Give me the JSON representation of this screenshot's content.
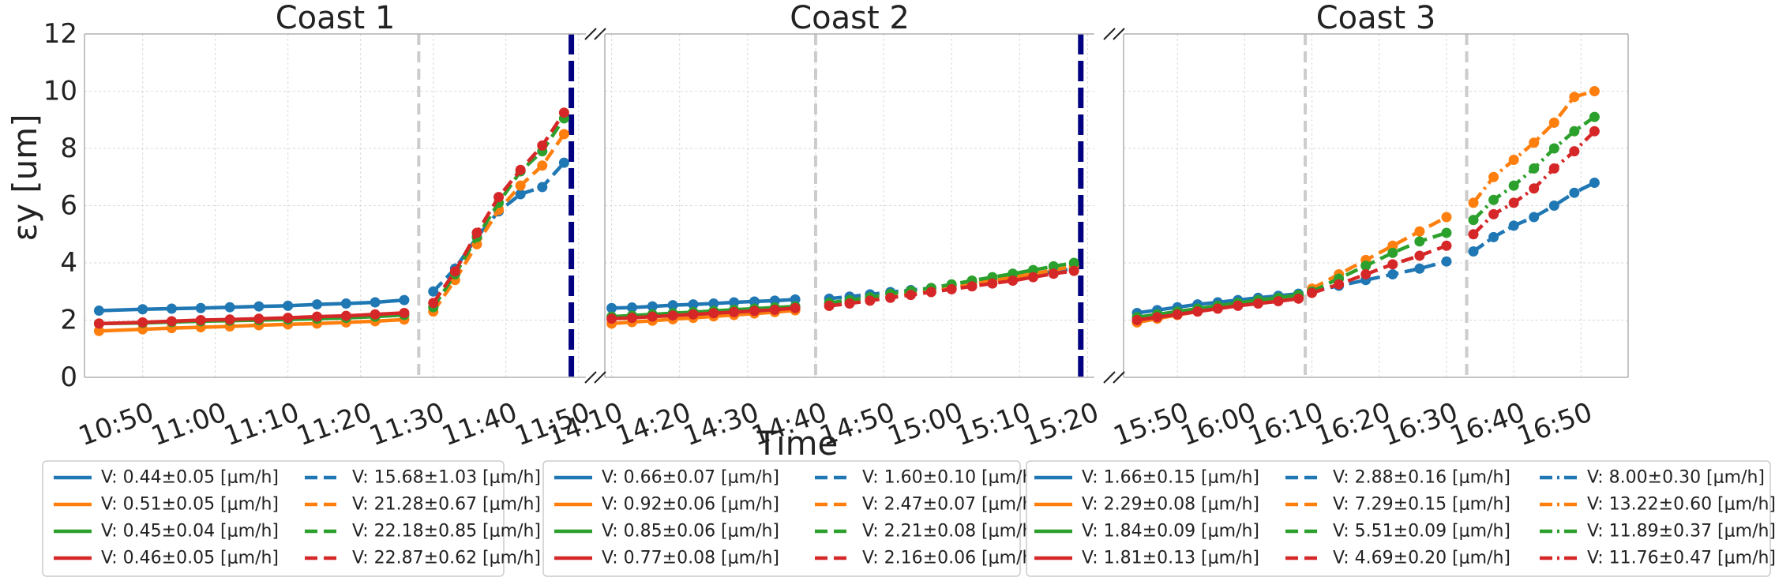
{
  "chart_data": {
    "type": "line",
    "ylabel": "εy [um]",
    "xlabel": "Time",
    "ylim": [
      0,
      12
    ],
    "yticks": [
      "0",
      "2",
      "4",
      "6",
      "8",
      "10",
      "12"
    ],
    "grid": true,
    "legend_position": "bottom",
    "colors": {
      "blue": "#1f77b4",
      "orange": "#ff7f0e",
      "green": "#2ca02c",
      "red": "#d62728",
      "marker_line": "#000080",
      "divider": "#cccccc"
    },
    "panels": [
      {
        "title": "Coast 1",
        "xlim": [
          "10:42",
          "11:51"
        ],
        "xticks": [
          "10:50",
          "11:00",
          "11:10",
          "11:20",
          "11:30",
          "11:40",
          "11:50"
        ],
        "dividers": [
          "11:28"
        ],
        "end_marker": "11:49",
        "series": [
          {
            "name": "V: 0.44±0.05 [μm/h]",
            "color": "blue",
            "style": "solid",
            "x": [
              "10:44",
              "10:50",
              "10:54",
              "10:58",
              "11:02",
              "11:06",
              "11:10",
              "11:14",
              "11:18",
              "11:22",
              "11:26"
            ],
            "y": [
              2.33,
              2.38,
              2.4,
              2.42,
              2.45,
              2.48,
              2.5,
              2.55,
              2.58,
              2.62,
              2.7
            ]
          },
          {
            "name": "V: 0.51±0.05 [μm/h]",
            "color": "orange",
            "style": "solid",
            "x": [
              "10:44",
              "10:50",
              "10:54",
              "10:58",
              "11:02",
              "11:06",
              "11:10",
              "11:14",
              "11:18",
              "11:22",
              "11:26"
            ],
            "y": [
              1.62,
              1.68,
              1.72,
              1.75,
              1.78,
              1.82,
              1.85,
              1.88,
              1.92,
              1.96,
              2.02
            ]
          },
          {
            "name": "V: 0.45±0.04 [μm/h]",
            "color": "green",
            "style": "solid",
            "x": [
              "10:44",
              "10:50",
              "10:54",
              "10:58",
              "11:02",
              "11:06",
              "11:10",
              "11:14",
              "11:18",
              "11:22",
              "11:26"
            ],
            "y": [
              1.88,
              1.9,
              1.93,
              1.96,
              1.98,
              2.0,
              2.02,
              2.05,
              2.08,
              2.12,
              2.18
            ]
          },
          {
            "name": "V: 0.46±0.05 [μm/h]",
            "color": "red",
            "style": "solid",
            "x": [
              "10:44",
              "10:50",
              "10:54",
              "10:58",
              "11:02",
              "11:06",
              "11:10",
              "11:14",
              "11:18",
              "11:22",
              "11:26"
            ],
            "y": [
              1.88,
              1.92,
              1.96,
              2.0,
              2.02,
              2.05,
              2.08,
              2.12,
              2.15,
              2.2,
              2.25
            ]
          },
          {
            "name": "V: 15.68±1.03 [μm/h]",
            "color": "blue",
            "style": "dashed",
            "x": [
              "11:30",
              "11:33",
              "11:36",
              "11:39",
              "11:42",
              "11:45",
              "11:48"
            ],
            "y": [
              3.0,
              3.8,
              4.9,
              5.8,
              6.4,
              6.65,
              7.5
            ]
          },
          {
            "name": "V: 21.28±0.67 [μm/h]",
            "color": "orange",
            "style": "dashed",
            "x": [
              "11:30",
              "11:33",
              "11:36",
              "11:39",
              "11:42",
              "11:45",
              "11:48"
            ],
            "y": [
              2.3,
              3.4,
              4.65,
              5.85,
              6.7,
              7.4,
              8.5
            ]
          },
          {
            "name": "V: 22.18±0.85 [μm/h]",
            "color": "green",
            "style": "dashed",
            "x": [
              "11:30",
              "11:33",
              "11:36",
              "11:39",
              "11:42",
              "11:45",
              "11:48"
            ],
            "y": [
              2.45,
              3.6,
              4.9,
              6.1,
              7.2,
              7.9,
              9.05
            ]
          },
          {
            "name": "V: 22.87±0.62 [μm/h]",
            "color": "red",
            "style": "dashed",
            "x": [
              "11:30",
              "11:33",
              "11:36",
              "11:39",
              "11:42",
              "11:45",
              "11:48"
            ],
            "y": [
              2.6,
              3.7,
              5.05,
              6.3,
              7.25,
              8.1,
              9.25
            ]
          }
        ]
      },
      {
        "title": "Coast 2",
        "xlim": [
          "14:09",
          "15:21"
        ],
        "xticks": [
          "14:10",
          "14:20",
          "14:30",
          "14:40",
          "14:50",
          "15:00",
          "15:10",
          "15:20"
        ],
        "dividers": [
          "14:40"
        ],
        "end_marker": "15:19",
        "series": [
          {
            "name": "V: 0.66±0.07 [μm/h]",
            "color": "blue",
            "style": "solid",
            "x": [
              "14:10",
              "14:13",
              "14:16",
              "14:19",
              "14:22",
              "14:25",
              "14:28",
              "14:31",
              "14:34",
              "14:37"
            ],
            "y": [
              2.42,
              2.44,
              2.48,
              2.52,
              2.55,
              2.58,
              2.62,
              2.65,
              2.68,
              2.72
            ]
          },
          {
            "name": "V: 0.92±0.06 [μm/h]",
            "color": "orange",
            "style": "solid",
            "x": [
              "14:10",
              "14:13",
              "14:16",
              "14:19",
              "14:22",
              "14:25",
              "14:28",
              "14:31",
              "14:34",
              "14:37"
            ],
            "y": [
              1.88,
              1.93,
              1.98,
              2.03,
              2.08,
              2.13,
              2.18,
              2.23,
              2.28,
              2.34
            ]
          },
          {
            "name": "V: 0.85±0.06 [μm/h]",
            "color": "green",
            "style": "solid",
            "x": [
              "14:10",
              "14:13",
              "14:16",
              "14:19",
              "14:22",
              "14:25",
              "14:28",
              "14:31",
              "14:34",
              "14:37"
            ],
            "y": [
              2.12,
              2.16,
              2.2,
              2.24,
              2.28,
              2.32,
              2.36,
              2.4,
              2.44,
              2.48
            ]
          },
          {
            "name": "V: 0.77±0.08 [μm/h]",
            "color": "red",
            "style": "solid",
            "x": [
              "14:10",
              "14:13",
              "14:16",
              "14:19",
              "14:22",
              "14:25",
              "14:28",
              "14:31",
              "14:34",
              "14:37"
            ],
            "y": [
              2.05,
              2.08,
              2.12,
              2.16,
              2.2,
              2.24,
              2.28,
              2.32,
              2.36,
              2.42
            ]
          },
          {
            "name": "V: 1.60±0.10 [μm/h]",
            "color": "blue",
            "style": "dashed",
            "x": [
              "14:42",
              "14:45",
              "14:48",
              "14:51",
              "14:54",
              "14:57",
              "15:00",
              "15:03",
              "15:06",
              "15:09",
              "15:12",
              "15:15",
              "15:18"
            ],
            "y": [
              2.75,
              2.82,
              2.9,
              2.98,
              3.05,
              3.12,
              3.2,
              3.3,
              3.4,
              3.5,
              3.6,
              3.7,
              3.8
            ]
          },
          {
            "name": "V: 2.47±0.07 [μm/h]",
            "color": "orange",
            "style": "dashed",
            "x": [
              "14:42",
              "14:45",
              "14:48",
              "14:51",
              "14:54",
              "14:57",
              "15:00",
              "15:03",
              "15:06",
              "15:09",
              "15:12",
              "15:15",
              "15:18"
            ],
            "y": [
              2.5,
              2.6,
              2.7,
              2.8,
              2.92,
              3.02,
              3.12,
              3.25,
              3.38,
              3.5,
              3.62,
              3.75,
              3.88
            ]
          },
          {
            "name": "V: 2.21±0.08 [μm/h]",
            "color": "green",
            "style": "dashed",
            "x": [
              "14:42",
              "14:45",
              "14:48",
              "14:51",
              "14:54",
              "14:57",
              "15:00",
              "15:03",
              "15:06",
              "15:09",
              "15:12",
              "15:15",
              "15:18"
            ],
            "y": [
              2.6,
              2.7,
              2.8,
              2.92,
              3.02,
              3.12,
              3.25,
              3.38,
              3.5,
              3.62,
              3.75,
              3.88,
              4.0
            ]
          },
          {
            "name": "V: 2.16±0.06 [μm/h]",
            "color": "red",
            "style": "dashed",
            "x": [
              "14:42",
              "14:45",
              "14:48",
              "14:51",
              "14:54",
              "14:57",
              "15:00",
              "15:03",
              "15:06",
              "15:09",
              "15:12",
              "15:15",
              "15:18"
            ],
            "y": [
              2.5,
              2.58,
              2.68,
              2.78,
              2.88,
              2.98,
              3.08,
              3.18,
              3.28,
              3.38,
              3.5,
              3.62,
              3.72
            ]
          }
        ]
      },
      {
        "title": "Coast 3",
        "xlim": [
          "15:42",
          "16:57"
        ],
        "xticks": [
          "15:50",
          "16:00",
          "16:10",
          "16:20",
          "16:30",
          "16:40",
          "16:50"
        ],
        "dividers": [
          "16:09",
          "16:33"
        ],
        "end_marker": null,
        "series": [
          {
            "name": "V: 1.66±0.15 [μm/h]",
            "color": "blue",
            "style": "solid",
            "x": [
              "15:44",
              "15:47",
              "15:50",
              "15:53",
              "15:56",
              "15:59",
              "16:02",
              "16:05",
              "16:08"
            ],
            "y": [
              2.25,
              2.35,
              2.45,
              2.55,
              2.62,
              2.7,
              2.78,
              2.85,
              2.92
            ]
          },
          {
            "name": "V: 2.29±0.08 [μm/h]",
            "color": "orange",
            "style": "solid",
            "x": [
              "15:44",
              "15:47",
              "15:50",
              "15:53",
              "15:56",
              "15:59",
              "16:02",
              "16:05",
              "16:08"
            ],
            "y": [
              1.92,
              2.05,
              2.18,
              2.3,
              2.42,
              2.52,
              2.62,
              2.72,
              2.82
            ]
          },
          {
            "name": "V: 1.84±0.09 [μm/h]",
            "color": "green",
            "style": "solid",
            "x": [
              "15:44",
              "15:47",
              "15:50",
              "15:53",
              "15:56",
              "15:59",
              "16:02",
              "16:05",
              "16:08"
            ],
            "y": [
              2.1,
              2.2,
              2.3,
              2.4,
              2.5,
              2.6,
              2.7,
              2.78,
              2.88
            ]
          },
          {
            "name": "V: 1.81±0.13 [μm/h]",
            "color": "red",
            "style": "solid",
            "x": [
              "15:44",
              "15:47",
              "15:50",
              "15:53",
              "15:56",
              "15:59",
              "16:02",
              "16:05",
              "16:08"
            ],
            "y": [
              2.0,
              2.1,
              2.2,
              2.3,
              2.4,
              2.5,
              2.58,
              2.66,
              2.75
            ]
          },
          {
            "name": "V: 2.88±0.16 [μm/h]",
            "color": "blue",
            "style": "dashed",
            "x": [
              "16:10",
              "16:14",
              "16:18",
              "16:22",
              "16:26",
              "16:30"
            ],
            "y": [
              3.0,
              3.2,
              3.4,
              3.6,
              3.8,
              4.05
            ]
          },
          {
            "name": "V: 7.29±0.15 [μm/h]",
            "color": "orange",
            "style": "dashed",
            "x": [
              "16:10",
              "16:14",
              "16:18",
              "16:22",
              "16:26",
              "16:30"
            ],
            "y": [
              3.1,
              3.6,
              4.1,
              4.6,
              5.1,
              5.6
            ]
          },
          {
            "name": "V: 5.51±0.09 [μm/h]",
            "color": "green",
            "style": "dashed",
            "x": [
              "16:10",
              "16:14",
              "16:18",
              "16:22",
              "16:26",
              "16:30"
            ],
            "y": [
              3.0,
              3.45,
              3.9,
              4.35,
              4.75,
              5.05
            ]
          },
          {
            "name": "V: 4.69±0.20 [μm/h]",
            "color": "red",
            "style": "dashed",
            "x": [
              "16:10",
              "16:14",
              "16:18",
              "16:22",
              "16:26",
              "16:30"
            ],
            "y": [
              2.95,
              3.25,
              3.6,
              3.95,
              4.25,
              4.6
            ]
          },
          {
            "name": "V: 8.00±0.30 [μm/h]",
            "color": "blue",
            "style": "dashdot",
            "x": [
              "16:34",
              "16:37",
              "16:40",
              "16:43",
              "16:46",
              "16:49",
              "16:52"
            ],
            "y": [
              4.4,
              4.9,
              5.3,
              5.6,
              6.0,
              6.45,
              6.8
            ]
          },
          {
            "name": "V: 13.22±0.60 [μm/h]",
            "color": "orange",
            "style": "dashdot",
            "x": [
              "16:34",
              "16:37",
              "16:40",
              "16:43",
              "16:46",
              "16:49",
              "16:52"
            ],
            "y": [
              6.1,
              7.0,
              7.6,
              8.2,
              8.9,
              9.8,
              10.0
            ]
          },
          {
            "name": "V: 11.89±0.37 [μm/h]",
            "color": "green",
            "style": "dashdot",
            "x": [
              "16:34",
              "16:37",
              "16:40",
              "16:43",
              "16:46",
              "16:49",
              "16:52"
            ],
            "y": [
              5.5,
              6.2,
              6.7,
              7.3,
              8.0,
              8.6,
              9.1
            ]
          },
          {
            "name": "V: 11.76±0.47 [μm/h]",
            "color": "red",
            "style": "dashdot",
            "x": [
              "16:34",
              "16:37",
              "16:40",
              "16:43",
              "16:46",
              "16:49",
              "16:52"
            ],
            "y": [
              5.0,
              5.7,
              6.1,
              6.6,
              7.3,
              7.9,
              8.6
            ]
          }
        ]
      }
    ]
  }
}
